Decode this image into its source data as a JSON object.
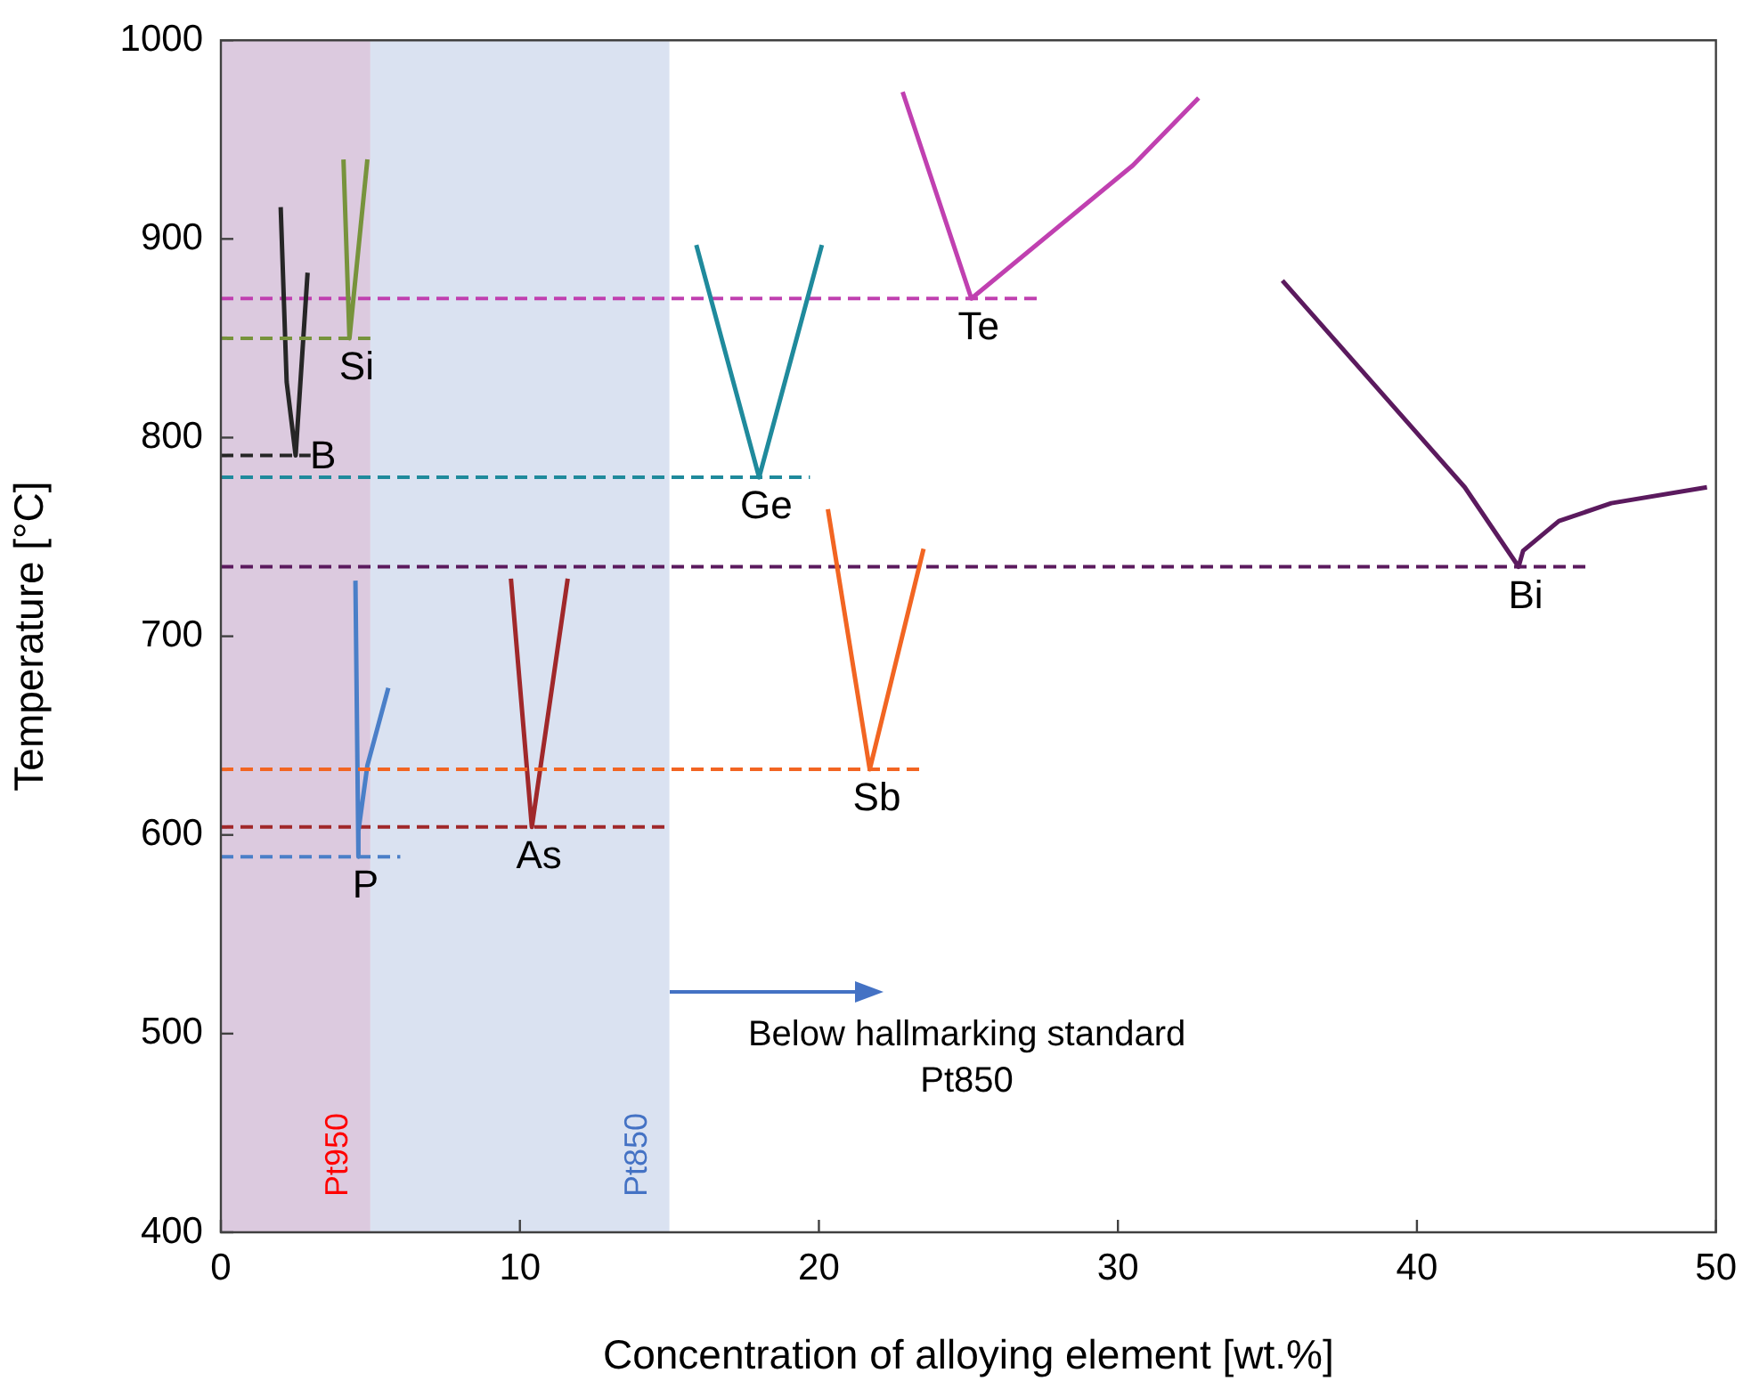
{
  "chart_data": {
    "type": "line",
    "xlabel": "Concentration of alloying element [wt.%]",
    "ylabel": "Temperature [°C]",
    "xlim": [
      0,
      50
    ],
    "xticks": [
      0,
      10,
      20,
      30,
      40,
      50
    ],
    "ylim": [
      400,
      1000
    ],
    "yticks": [
      400,
      500,
      600,
      700,
      800,
      900,
      1000
    ],
    "legend": false,
    "marker": "none",
    "line_style": "solid",
    "series": [
      {
        "name": "Si",
        "color": "#77933c",
        "x": [
          4.1,
          4.3,
          4.9
        ],
        "values": [
          940,
          850,
          940
        ]
      },
      {
        "color": "#77933c",
        "line_style": "dashed",
        "x": [
          0,
          5
        ],
        "values": [
          850,
          850
        ]
      },
      {
        "name": "B",
        "color": "#262626",
        "x": [
          2.0,
          2.2,
          2.5,
          2.9
        ],
        "values": [
          916,
          828,
          791,
          883
        ]
      },
      {
        "color": "#262626",
        "line_style": "dashed",
        "x": [
          0,
          3
        ],
        "values": [
          791,
          791
        ]
      },
      {
        "name": "Ge",
        "color": "#1f8a9c",
        "x": [
          15.9,
          18.0,
          20.1
        ],
        "values": [
          897,
          780,
          897
        ]
      },
      {
        "color": "#1f8a9c",
        "line_style": "dashed",
        "x": [
          0,
          19.7
        ],
        "values": [
          780,
          780
        ]
      },
      {
        "name": "Te",
        "color": "#c040b0",
        "x": [
          22.8,
          25.1,
          30.5,
          32.7
        ],
        "values": [
          974,
          870,
          937,
          971
        ]
      },
      {
        "color": "#c040b0",
        "line_style": "dashed",
        "x": [
          0,
          27.4
        ],
        "values": [
          870,
          870
        ]
      },
      {
        "name": "Sb",
        "color": "#f26522",
        "x": [
          20.3,
          21.7,
          23.5
        ],
        "values": [
          764,
          633,
          744
        ]
      },
      {
        "color": "#f26522",
        "line_style": "dashed",
        "x": [
          0,
          23.5
        ],
        "values": [
          633,
          633
        ]
      },
      {
        "name": "Bi",
        "color": "#5b1a5e",
        "x": [
          35.5,
          41.6,
          43.4,
          43.55,
          44.75,
          46.5,
          49.7
        ],
        "values": [
          879,
          775,
          735,
          743,
          758,
          767,
          775
        ]
      },
      {
        "color": "#5b1a5e",
        "line_style": "dashed",
        "x": [
          0,
          45.7
        ],
        "values": [
          735,
          735
        ]
      },
      {
        "name": "P",
        "color": "#4a7fc8",
        "x": [
          4.5,
          4.6,
          4.6,
          4.9,
          5.6
        ],
        "values": [
          728,
          589,
          602,
          635,
          674
        ]
      },
      {
        "color": "#4a7fc8",
        "line_style": "dashed",
        "x": [
          0,
          6.0
        ],
        "values": [
          589,
          589
        ]
      },
      {
        "name": "As",
        "color": "#a0282a",
        "x": [
          9.7,
          10.4,
          11.6
        ],
        "values": [
          729,
          604,
          729
        ]
      },
      {
        "color": "#a0282a",
        "line_style": "dashed",
        "x": [
          0,
          15
        ],
        "values": [
          604,
          604
        ]
      }
    ],
    "bands": [
      {
        "axis": "x",
        "from": 0,
        "to": 5,
        "label": "Pt950",
        "color": "#dccadf"
      },
      {
        "axis": "x",
        "from": 5,
        "to": 15,
        "label": "Pt850",
        "color": "#dae2f1"
      }
    ],
    "annotations": [
      {
        "text": "Below hallmarking standard\nPt850",
        "x": 15,
        "y": 521
      }
    ]
  }
}
